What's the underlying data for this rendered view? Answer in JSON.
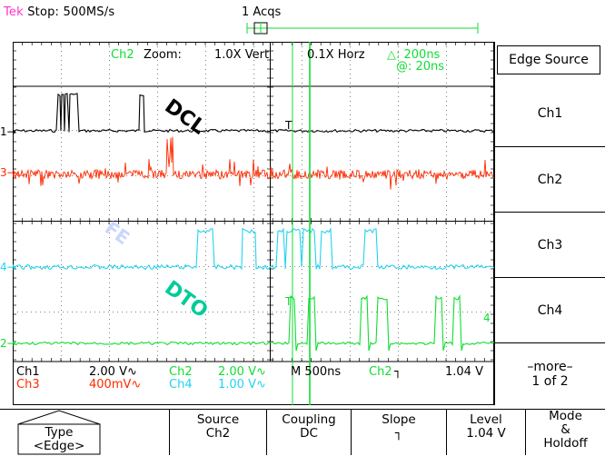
{
  "status": {
    "brand": "Tek",
    "state": "Stop: 500MS/s",
    "acqs": "1 Acqs"
  },
  "screen": {
    "zoom_channel": "Ch2",
    "zoom_text": "Zoom:",
    "vert": "1.0X Vert",
    "horz": "0.1X Horz",
    "delta": "△: 200ns",
    "at": "@: 20ns",
    "labels": {
      "dcl": "DCL",
      "fe": "FE",
      "dto": "DTO"
    },
    "ground_markers": [
      "1",
      "3",
      "4",
      "2"
    ],
    "trigger_marker": "T",
    "ch4_marker": "4"
  },
  "menu": {
    "header": "Edge Source",
    "items": [
      "Ch1",
      "Ch2",
      "Ch3",
      "Ch4"
    ],
    "more_line1": "–more–",
    "more_line2": "1 of 2"
  },
  "readout": {
    "ch1": "Ch1",
    "ch1_scale": "2.00 V∿",
    "ch2": "Ch2",
    "ch2_scale": "2.00 V∿",
    "ch3": "Ch3",
    "ch3_scale": "400mV∿",
    "ch4": "Ch4",
    "ch4_scale": "1.00 V∿",
    "timebase": "M  500ns",
    "trig_src": "Ch2",
    "trig_slope": "┐",
    "trig_level": "1.04 V"
  },
  "bottom": {
    "type_l1": "Type",
    "type_l2": "<Edge>",
    "source_l1": "Source",
    "source_l2": "Ch2",
    "coupling_l1": "Coupling",
    "coupling_l2": "DC",
    "slope_l1": "Slope",
    "slope_l2": "┐",
    "level_l1": "Level",
    "level_l2": "1.04 V",
    "mode_l1": "Mode",
    "mode_l2": "&",
    "mode_l3": "Holdoff"
  },
  "colors": {
    "ch1": "#000000",
    "ch2": "#ff2a00",
    "ch3": "#22d4ee",
    "ch4": "#11dd33",
    "brand": "#ff33cc",
    "accent_green": "#11dd33"
  }
}
